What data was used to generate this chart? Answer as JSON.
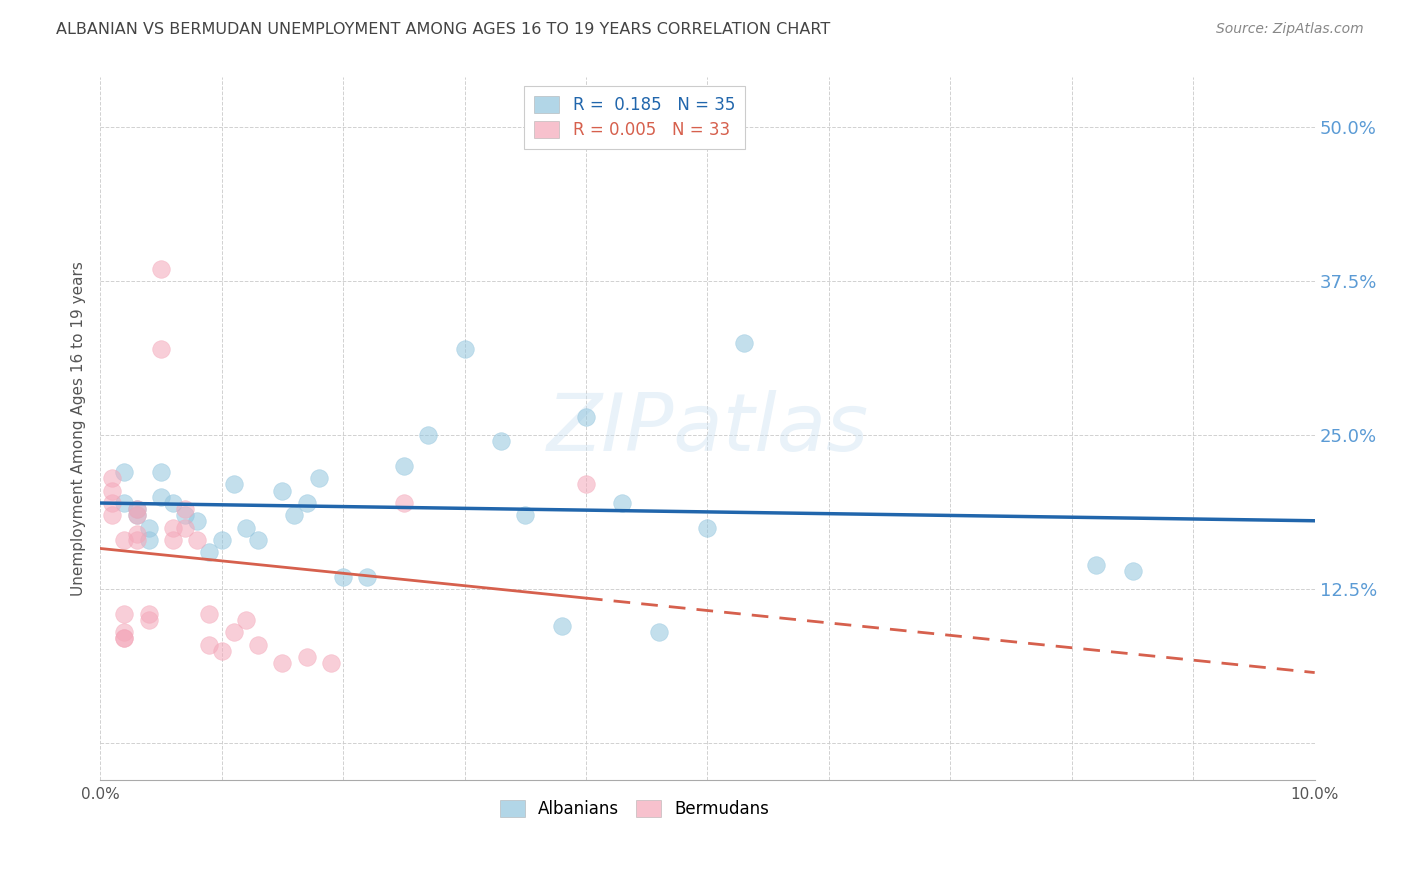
{
  "title": "ALBANIAN VS BERMUDAN UNEMPLOYMENT AMONG AGES 16 TO 19 YEARS CORRELATION CHART",
  "source": "Source: ZipAtlas.com",
  "ylabel": "Unemployment Among Ages 16 to 19 years",
  "xlim": [
    0.0,
    0.1
  ],
  "ylim": [
    -0.03,
    0.54
  ],
  "yticks": [
    0.0,
    0.125,
    0.25,
    0.375,
    0.5
  ],
  "ytick_labels": [
    "",
    "12.5%",
    "25.0%",
    "37.5%",
    "50.0%"
  ],
  "xticks": [
    0.0,
    0.01,
    0.02,
    0.03,
    0.04,
    0.05,
    0.06,
    0.07,
    0.08,
    0.09,
    0.1
  ],
  "xtick_labels": [
    "0.0%",
    "",
    "",
    "",
    "",
    "",
    "",
    "",
    "",
    "",
    "10.0%"
  ],
  "albanian_R": 0.185,
  "albanian_N": 35,
  "bermudan_R": 0.005,
  "bermudan_N": 33,
  "albanian_color": "#92c5de",
  "bermudan_color": "#f4a7b9",
  "albanian_line_color": "#2166ac",
  "bermudan_line_color": "#d6604d",
  "background_color": "#ffffff",
  "grid_color": "#cccccc",
  "axis_tick_color": "#5b9bd5",
  "title_color": "#444444",
  "albanian_x": [
    0.002,
    0.002,
    0.003,
    0.003,
    0.004,
    0.004,
    0.005,
    0.005,
    0.006,
    0.007,
    0.008,
    0.009,
    0.01,
    0.011,
    0.012,
    0.013,
    0.015,
    0.016,
    0.017,
    0.018,
    0.02,
    0.022,
    0.025,
    0.027,
    0.03,
    0.033,
    0.035,
    0.038,
    0.04,
    0.043,
    0.046,
    0.05,
    0.053,
    0.082,
    0.085
  ],
  "albanian_y": [
    0.22,
    0.195,
    0.19,
    0.185,
    0.175,
    0.165,
    0.2,
    0.22,
    0.195,
    0.185,
    0.18,
    0.155,
    0.165,
    0.21,
    0.175,
    0.165,
    0.205,
    0.185,
    0.195,
    0.215,
    0.135,
    0.135,
    0.225,
    0.25,
    0.32,
    0.245,
    0.185,
    0.095,
    0.265,
    0.195,
    0.09,
    0.175,
    0.325,
    0.145,
    0.14
  ],
  "bermudan_x": [
    0.001,
    0.001,
    0.001,
    0.001,
    0.002,
    0.002,
    0.002,
    0.002,
    0.002,
    0.003,
    0.003,
    0.003,
    0.003,
    0.004,
    0.004,
    0.005,
    0.005,
    0.006,
    0.006,
    0.007,
    0.007,
    0.008,
    0.009,
    0.009,
    0.01,
    0.011,
    0.012,
    0.013,
    0.015,
    0.017,
    0.019,
    0.025,
    0.04
  ],
  "bermudan_y": [
    0.195,
    0.215,
    0.205,
    0.185,
    0.09,
    0.085,
    0.105,
    0.085,
    0.165,
    0.185,
    0.17,
    0.19,
    0.165,
    0.1,
    0.105,
    0.385,
    0.32,
    0.175,
    0.165,
    0.19,
    0.175,
    0.165,
    0.105,
    0.08,
    0.075,
    0.09,
    0.1,
    0.08,
    0.065,
    0.07,
    0.065,
    0.195,
    0.21
  ],
  "watermark": "ZIPatlas",
  "legend_R_label1": "R =  0.185   N = 35",
  "legend_R_label2": "R = 0.005   N = 33"
}
